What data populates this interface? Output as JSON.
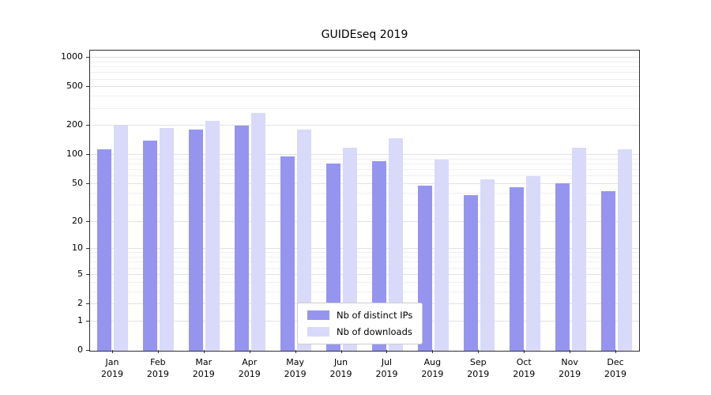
{
  "chart_data": {
    "type": "bar",
    "title": "GUIDEseq 2019",
    "xlabel": "",
    "ylabel": "",
    "yscale": "symlog",
    "ylim": [
      0,
      1000
    ],
    "grid": true,
    "legend_position": "lower center",
    "y_ticks": [
      0,
      1,
      2,
      5,
      10,
      20,
      50,
      100,
      200,
      500,
      1000
    ],
    "categories": [
      "Jan",
      "Feb",
      "Mar",
      "Apr",
      "May",
      "Jun",
      "Jul",
      "Aug",
      "Sep",
      "Oct",
      "Nov",
      "Dec"
    ],
    "year_label": "2019",
    "series": [
      {
        "name": "Nb of distinct IPs",
        "color": "#9595ef",
        "values": [
          115,
          140,
          185,
          200,
          97,
          82,
          86,
          48,
          38,
          46,
          51,
          42
        ]
      },
      {
        "name": "Nb of downloads",
        "color": "#d9d9f9",
        "values": [
          205,
          190,
          225,
          270,
          185,
          120,
          148,
          90,
          56,
          61,
          120,
          115
        ]
      }
    ]
  }
}
